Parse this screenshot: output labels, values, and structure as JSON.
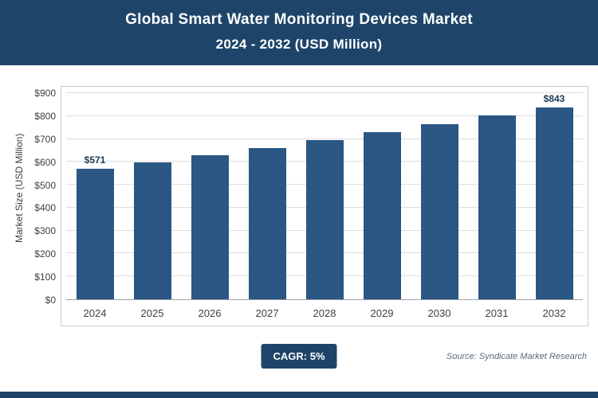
{
  "header": {
    "line1": "Global Smart Water Monitoring Devices Market",
    "line2": "2024 - 2032 (USD Million)"
  },
  "chart_data": {
    "type": "bar",
    "title": "Global Smart Water Monitoring Devices Market 2024 - 2032 (USD Million)",
    "categories": [
      "2024",
      "2025",
      "2026",
      "2027",
      "2028",
      "2029",
      "2030",
      "2031",
      "2032"
    ],
    "values": [
      571,
      599,
      629,
      661,
      694,
      729,
      765,
      803,
      843
    ],
    "bar_labels": [
      "$571",
      "",
      "",
      "",
      "",
      "",
      "",
      "",
      "$843"
    ],
    "xlabel": "",
    "ylabel": "Market Size (USD Million)",
    "ylim": [
      0,
      900
    ],
    "ytick_step": 100,
    "ytick_prefix": "$",
    "grid": true,
    "legend_position": "none",
    "bar_color": "#2a5783"
  },
  "footer": {
    "cagr_label": "CAGR: 5%",
    "source": "Source: Syndicate Market Research"
  },
  "colors": {
    "header_bg": "#1e4569",
    "bar": "#2a5783",
    "badge_bg": "#1e4569"
  }
}
